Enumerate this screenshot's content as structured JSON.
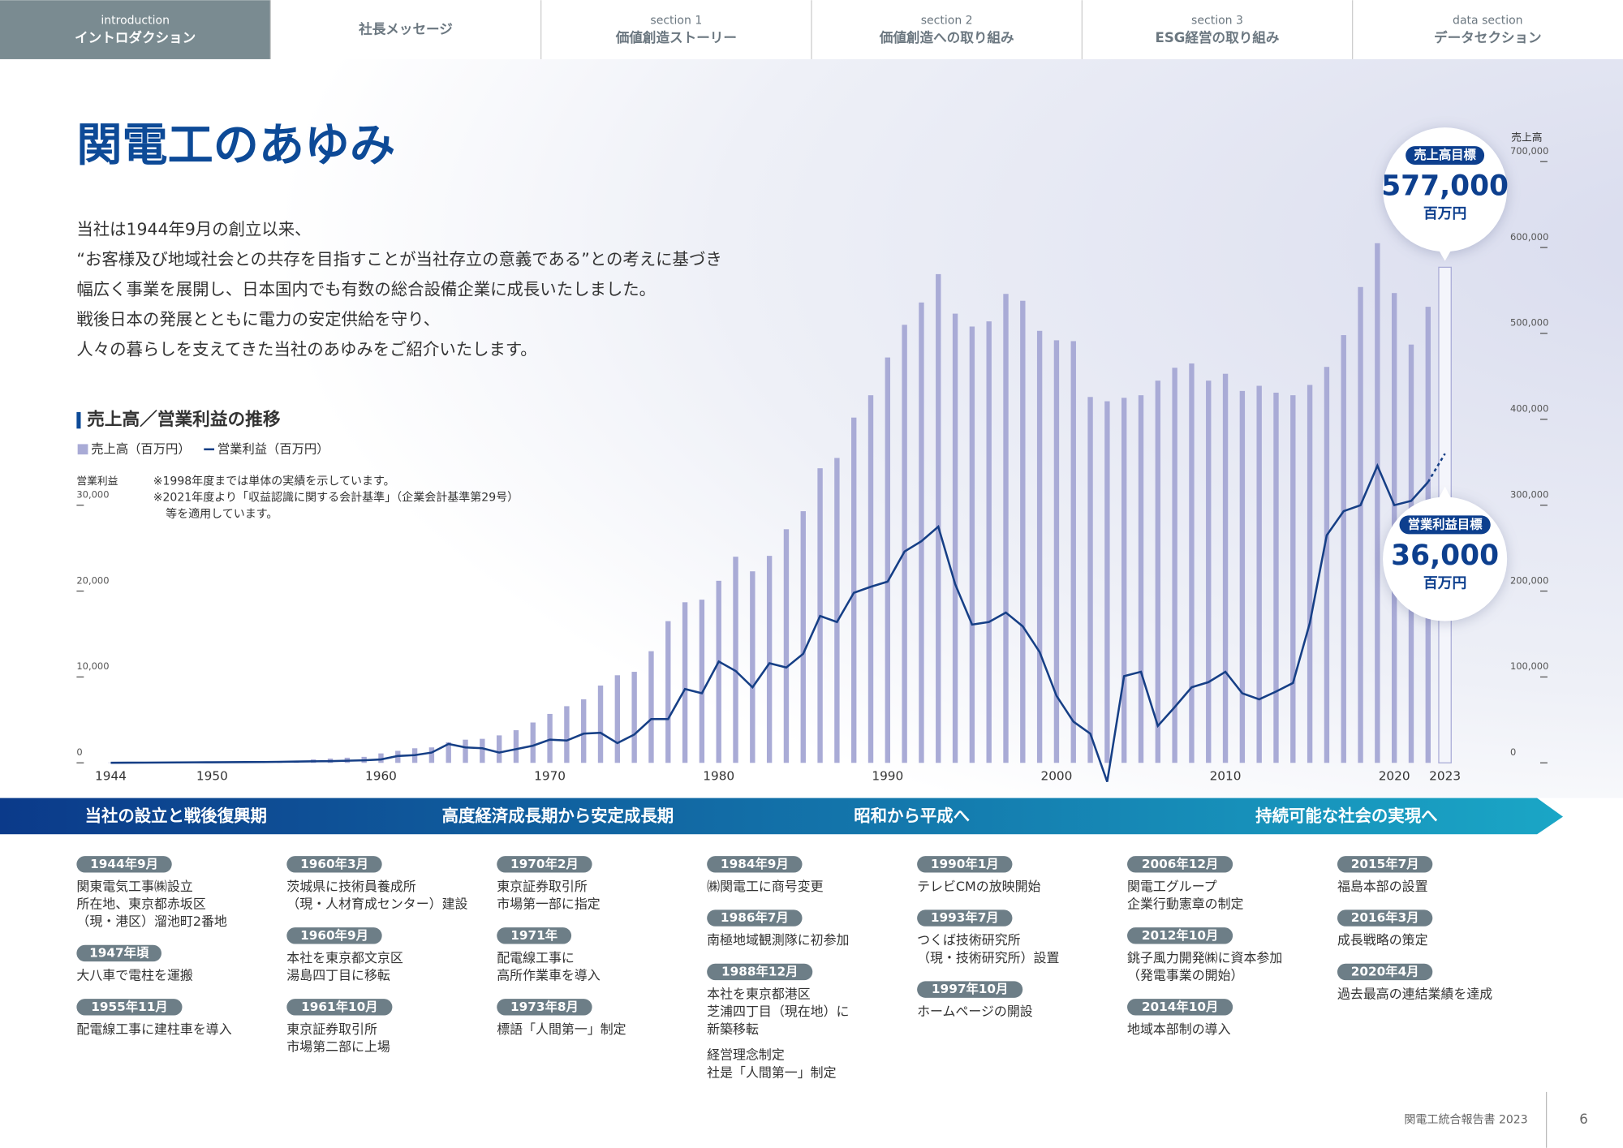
{
  "nav": [
    {
      "sub": "introduction",
      "label": "イントロダクション",
      "active": true
    },
    {
      "label": "社長メッセージ"
    },
    {
      "sub": "section 1",
      "label": "価値創造ストーリー"
    },
    {
      "sub": "section 2",
      "label": "価値創造への取り組み"
    },
    {
      "sub": "section 3",
      "label": "ESG経営の取り組み"
    },
    {
      "sub": "data section",
      "label": "データセクション"
    }
  ],
  "title": "関電工のあゆみ",
  "body": [
    "当社は1944年9月の創立以来、",
    "“お客様及び地域社会との共存を目指すことが当社存立の意義である”との考えに基づき",
    "幅広く事業を展開し、日本国内でも有数の総合設備企業に成長いたしました。",
    "戦後日本の発展とともに電力の安定供給を守り、",
    "人々の暮らしを支えてきた当社のあゆみをご紹介いたします。"
  ],
  "chart_data": {
    "type": "bar-line",
    "title": "売上高／営業利益の推移",
    "x": [
      1944,
      1945,
      1946,
      1947,
      1948,
      1949,
      1950,
      1951,
      1952,
      1953,
      1954,
      1955,
      1956,
      1957,
      1958,
      1959,
      1960,
      1961,
      1962,
      1963,
      1964,
      1965,
      1966,
      1967,
      1968,
      1969,
      1970,
      1971,
      1972,
      1973,
      1974,
      1975,
      1976,
      1977,
      1978,
      1979,
      1980,
      1981,
      1982,
      1983,
      1984,
      1985,
      1986,
      1987,
      1988,
      1989,
      1990,
      1991,
      1992,
      1993,
      1994,
      1995,
      1996,
      1997,
      1998,
      1999,
      2000,
      2001,
      2002,
      2003,
      2004,
      2005,
      2006,
      2007,
      2008,
      2009,
      2010,
      2011,
      2012,
      2013,
      2014,
      2015,
      2016,
      2017,
      2018,
      2019,
      2020,
      2021,
      2022
    ],
    "series": [
      {
        "name": "売上高（百万円）",
        "type": "bar",
        "axis": "y2",
        "color": "#a9abd6",
        "values": [
          400,
          500,
          600,
          700,
          800,
          900,
          1000,
          1100,
          1300,
          1500,
          1800,
          2000,
          4000,
          5000,
          6000,
          7000,
          11000,
          14000,
          17000,
          18000,
          24000,
          27000,
          28000,
          32000,
          38000,
          47000,
          57000,
          66000,
          74000,
          90000,
          102000,
          106000,
          130000,
          165000,
          187000,
          190000,
          212000,
          240000,
          223000,
          241000,
          272000,
          293000,
          343000,
          355000,
          402000,
          428000,
          472000,
          510000,
          536000,
          569000,
          523000,
          508000,
          514000,
          546000,
          538000,
          503000,
          492000,
          491000,
          426000,
          421000,
          425000,
          428000,
          445000,
          460000,
          465000,
          445000,
          453000,
          433000,
          439000,
          431000,
          428000,
          440000,
          461000,
          498000,
          554000,
          605000,
          547000,
          487000,
          531000
        ]
      },
      {
        "name": "営業利益（百万円）",
        "type": "line",
        "color": "#163f86",
        "values": [
          10,
          20,
          30,
          40,
          50,
          60,
          70,
          80,
          90,
          100,
          120,
          150,
          180,
          200,
          250,
          300,
          400,
          800,
          900,
          1200,
          2200,
          1800,
          1700,
          1200,
          1600,
          2000,
          2700,
          2600,
          3400,
          3500,
          2300,
          3300,
          5100,
          5100,
          8600,
          8100,
          11800,
          10700,
          8800,
          11600,
          11100,
          12700,
          17100,
          16400,
          19800,
          20500,
          21100,
          24600,
          25800,
          27500,
          20800,
          16100,
          16400,
          17500,
          15900,
          12900,
          7800,
          4800,
          3400,
          -2200,
          10100,
          10600,
          4300,
          6500,
          8800,
          9400,
          10600,
          8100,
          7400,
          8300,
          9300,
          16300,
          26500,
          29300,
          30000,
          34600,
          30000,
          30500,
          32700
        ]
      }
    ],
    "xlim": [
      1944,
      2023
    ],
    "xticks": [
      1944,
      1950,
      1960,
      1970,
      1980,
      1990,
      2000,
      2010,
      2020,
      2023
    ],
    "ylabel": "営業利益",
    "ylim": [
      0,
      70000
    ],
    "yticks": [
      0,
      {
        "value": 10000,
        "label": "10,000"
      },
      {
        "value": 20000,
        "label": "20,000"
      },
      {
        "value": 30000,
        "label": "30,000"
      }
    ],
    "y2label": "売上高",
    "y2lim": [
      0,
      700000
    ],
    "y2ticks": [
      0,
      {
        "value": 100000,
        "label": "100,000"
      },
      {
        "value": 200000,
        "label": "200,000"
      },
      {
        "value": 300000,
        "label": "300,000"
      },
      {
        "value": 400000,
        "label": "400,000"
      },
      {
        "value": 500000,
        "label": "500,000"
      },
      {
        "value": 600000,
        "label": "600,000"
      },
      {
        "value": 700000,
        "label": "700,000"
      }
    ],
    "notes": [
      "※1998年度までは単体の実績を示しています。",
      "※2021年度より「収益認識に関する会計基準」（企業会計基準第29号）",
      "等を適用しています。"
    ],
    "revenue_target": {
      "label": "売上高目標",
      "year": 2023,
      "value": 577000,
      "value_label": "577,000",
      "unit": "百万円"
    },
    "profit_target": {
      "label": "営業利益目標",
      "year": 2023,
      "value": 36000,
      "value_label": "36,000",
      "unit": "百万円"
    }
  },
  "eras": [
    "当社の設立と戦後復興期",
    "高度経済成長期から安定成長期",
    "昭和から平成へ",
    "持続可能な社会の実現へ"
  ],
  "timeline": [
    [
      {
        "date": "1944年9月",
        "text": [
          "関東電気工事㈱設立",
          "所在地、東京都赤坂区",
          "（現・港区）溜池町2番地"
        ]
      },
      {
        "date": "1947年頃",
        "text": [
          "大八車で電柱を運搬"
        ]
      },
      {
        "date": "1955年11月",
        "text": [
          "配電線工事に建柱車を導入"
        ]
      }
    ],
    [
      {
        "date": "1960年3月",
        "text": [
          "茨城県に技術員養成所",
          "（現・人材育成センター）建設"
        ]
      },
      {
        "date": "1960年9月",
        "text": [
          "本社を東京都文京区",
          "湯島四丁目に移転"
        ]
      },
      {
        "date": "1961年10月",
        "text": [
          "東京証券取引所",
          "市場第二部に上場"
        ]
      }
    ],
    [
      {
        "date": "1970年2月",
        "text": [
          "東京証券取引所",
          "市場第一部に指定"
        ]
      },
      {
        "date": "1971年",
        "text": [
          "配電線工事に",
          "高所作業車を導入"
        ]
      },
      {
        "date": "1973年8月",
        "text": [
          "標語「人間第一」制定"
        ]
      }
    ],
    [
      {
        "date": "1984年9月",
        "text": [
          "㈱関電工に商号変更"
        ]
      },
      {
        "date": "1986年7月",
        "text": [
          "南極地域観測隊に初参加"
        ]
      },
      {
        "date": "1988年12月",
        "text": [
          "本社を東京都港区",
          "芝浦四丁目（現在地）に",
          "新築移転"
        ],
        "note": [
          "経営理念制定",
          "社是「人間第一」制定"
        ]
      }
    ],
    [
      {
        "date": "1990年1月",
        "text": [
          "テレビCMの放映開始"
        ]
      },
      {
        "date": "1993年7月",
        "text": [
          "つくば技術研究所",
          "（現・技術研究所）設置"
        ]
      },
      {
        "date": "1997年10月",
        "text": [
          "ホームページの開設"
        ]
      }
    ],
    [
      {
        "date": "2006年12月",
        "text": [
          "関電工グループ",
          "企業行動憲章の制定"
        ]
      },
      {
        "date": "2012年10月",
        "text": [
          "銚子風力開発㈱に資本参加",
          "（発電事業の開始）"
        ]
      },
      {
        "date": "2014年10月",
        "text": [
          "地域本部制の導入"
        ]
      }
    ],
    [
      {
        "date": "2015年7月",
        "text": [
          "福島本部の設置"
        ]
      },
      {
        "date": "2016年3月",
        "text": [
          "成長戦略の策定"
        ]
      },
      {
        "date": "2020年4月",
        "text": [
          "過去最高の連結業績を達成"
        ]
      }
    ]
  ],
  "footer": {
    "publication": "関電工統合報告書 2023",
    "page": "6"
  }
}
